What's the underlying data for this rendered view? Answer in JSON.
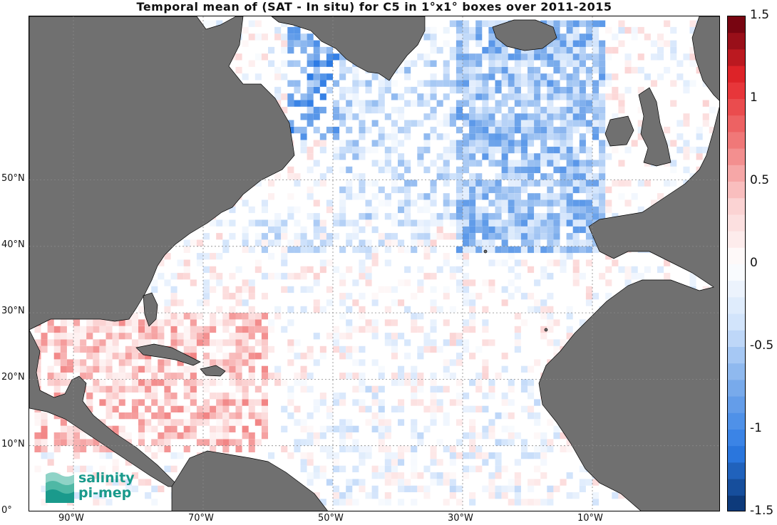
{
  "title": "Temporal mean of (SAT - In situ) for C5 in 1°x1° boxes over 2011-2015",
  "lat_labels": [
    {
      "text": "50°N",
      "lat": 50
    },
    {
      "text": "40°N",
      "lat": 40
    },
    {
      "text": "30°N",
      "lat": 30
    },
    {
      "text": "20°N",
      "lat": 20
    },
    {
      "text": "10°N",
      "lat": 10
    },
    {
      "text": "0°",
      "lat": 0
    }
  ],
  "lon_labels": [
    {
      "text": "90°W",
      "lon": -90
    },
    {
      "text": "70°W",
      "lon": -70
    },
    {
      "text": "50°W",
      "lon": -50
    },
    {
      "text": "30°W",
      "lon": -30
    },
    {
      "text": "10°W",
      "lon": -10
    }
  ],
  "colorbar": {
    "min": -1.5,
    "max": 1.5,
    "ticks": [
      "1.5",
      "1",
      "0.5",
      "0",
      "-0.5",
      "-1",
      "-1.5"
    ],
    "colormap": "blue-white-red",
    "colors": {
      "dark_blue": "#08306b",
      "blue": "#2c7be5",
      "light_blue": "#cfe2fb",
      "white": "#ffffff",
      "light_red": "#fbd0d0",
      "red": "#e5252a",
      "dark_red": "#67000d"
    }
  },
  "land_color": "#707070",
  "grid": true,
  "logo": {
    "line1": "salinity",
    "line2": "pi-mep"
  }
}
